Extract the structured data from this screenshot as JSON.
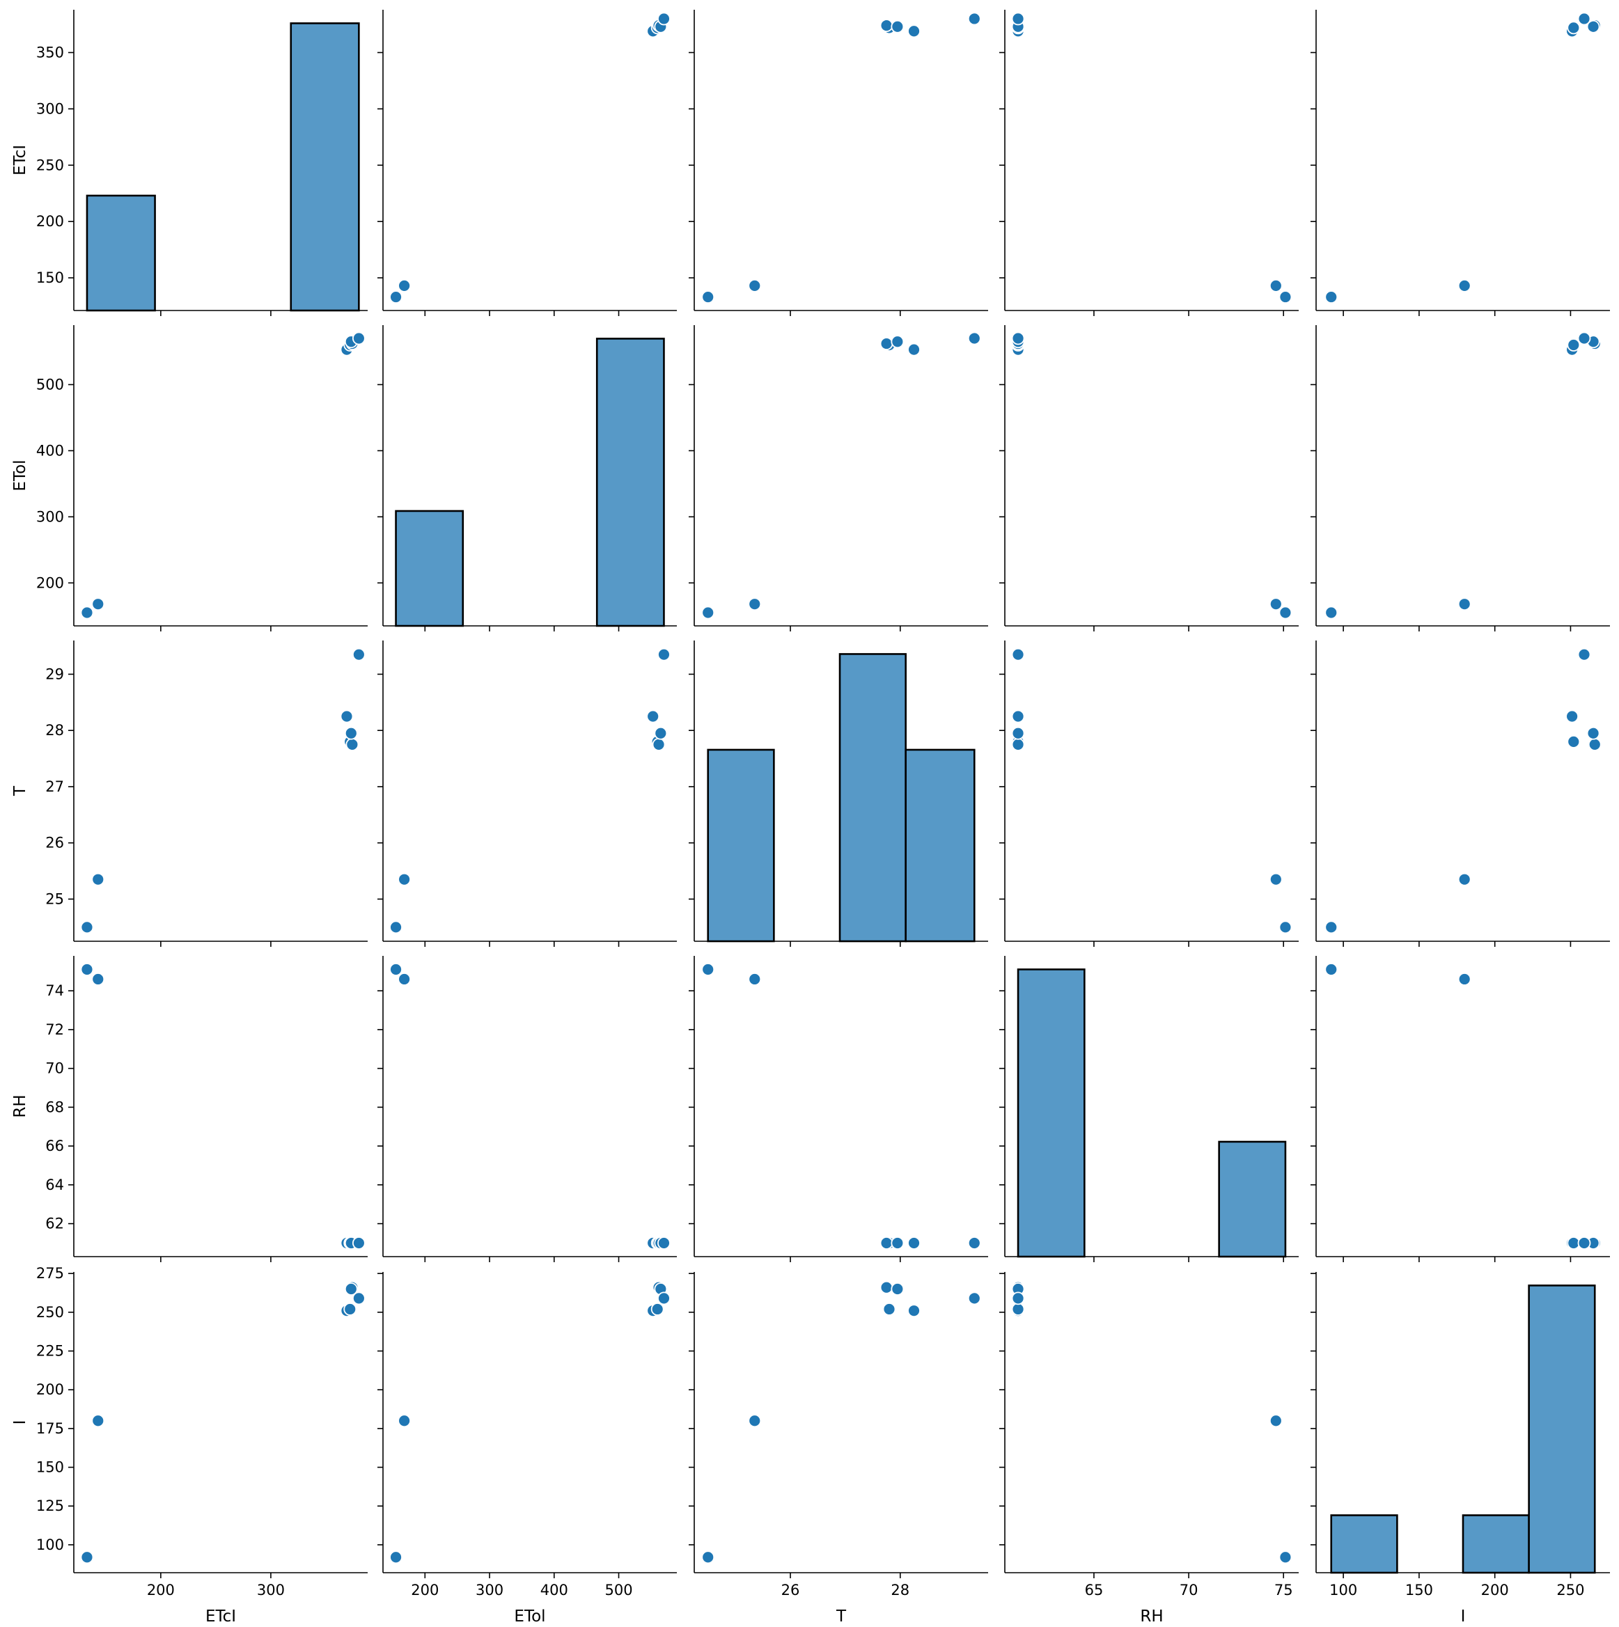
{
  "chart_data": {
    "type": "scatter",
    "layout": "pairplot",
    "variables": [
      "ETcI",
      "ETol",
      "T",
      "RH",
      "I"
    ],
    "colors": {
      "points": "#1f77b4",
      "bars": "#5799c7",
      "bar_edge": "#000000",
      "axis": "#000000"
    },
    "grid": false,
    "legend": "none",
    "observations": {
      "ETcI": [
        133,
        143,
        369,
        372,
        374,
        373,
        380
      ],
      "ETol": [
        155,
        168,
        553,
        560,
        562,
        565,
        570
      ],
      "T": [
        24.5,
        25.35,
        28.25,
        27.8,
        27.75,
        27.95,
        29.35
      ],
      "RH": [
        75.1,
        74.6,
        61.0,
        61.0,
        61.0,
        61.0,
        61.0
      ],
      "I": [
        92,
        180,
        251,
        252,
        266,
        265,
        259
      ]
    },
    "axes": [
      {
        "name": "ETcI",
        "label": "ETcI",
        "range": [
          121,
          388
        ],
        "ticks": [
          {
            "value": 150,
            "label": "150"
          },
          {
            "value": 200,
            "label": "200"
          },
          {
            "value": 250,
            "label": "250"
          },
          {
            "value": 300,
            "label": "300"
          },
          {
            "value": 350,
            "label": "350"
          }
        ],
        "x_ticks": [
          {
            "value": 200,
            "label": "200"
          },
          {
            "value": 300,
            "label": "300"
          }
        ]
      },
      {
        "name": "ETol",
        "label": "ETol",
        "range": [
          135,
          590
        ],
        "ticks": [
          {
            "value": 200,
            "label": "200"
          },
          {
            "value": 300,
            "label": "300"
          },
          {
            "value": 400,
            "label": "400"
          },
          {
            "value": 500,
            "label": "500"
          }
        ]
      },
      {
        "name": "T",
        "label": "T",
        "range": [
          24.25,
          29.6
        ],
        "ticks": [
          {
            "value": 25,
            "label": "25"
          },
          {
            "value": 26,
            "label": "26"
          },
          {
            "value": 27,
            "label": "27"
          },
          {
            "value": 28,
            "label": "28"
          },
          {
            "value": 29,
            "label": "29"
          }
        ],
        "x_ticks": [
          {
            "value": 26,
            "label": "26"
          },
          {
            "value": 28,
            "label": "28"
          }
        ]
      },
      {
        "name": "RH",
        "label": "RH",
        "range": [
          60.3,
          75.8
        ],
        "ticks": [
          {
            "value": 62,
            "label": "62"
          },
          {
            "value": 64,
            "label": "64"
          },
          {
            "value": 66,
            "label": "66"
          },
          {
            "value": 68,
            "label": "68"
          },
          {
            "value": 70,
            "label": "70"
          },
          {
            "value": 72,
            "label": "72"
          },
          {
            "value": 74,
            "label": "74"
          }
        ],
        "x_ticks": [
          {
            "value": 65,
            "label": "65"
          },
          {
            "value": 70,
            "label": "70"
          },
          {
            "value": 75,
            "label": "75"
          }
        ]
      },
      {
        "name": "I",
        "label": "I",
        "range": [
          82,
          276
        ],
        "ticks": [
          {
            "value": 100,
            "label": "100"
          },
          {
            "value": 125,
            "label": "125"
          },
          {
            "value": 150,
            "label": "150"
          },
          {
            "value": 175,
            "label": "175"
          },
          {
            "value": 200,
            "label": "200"
          },
          {
            "value": 225,
            "label": "225"
          },
          {
            "value": 250,
            "label": "250"
          },
          {
            "value": 275,
            "label": "275"
          }
        ],
        "x_ticks": [
          {
            "value": 100,
            "label": "100"
          },
          {
            "value": 150,
            "label": "150"
          },
          {
            "value": 200,
            "label": "200"
          },
          {
            "value": 250,
            "label": "250"
          }
        ]
      }
    ],
    "histograms": [
      {
        "variable": "ETcI",
        "bins": [
          [
            133,
            194.75
          ],
          [
            194.75,
            256.5
          ],
          [
            256.5,
            318.25
          ],
          [
            318.25,
            380
          ]
        ],
        "counts": [
          2,
          0,
          0,
          5
        ]
      },
      {
        "variable": "ETol",
        "bins": [
          [
            155,
            258.75
          ],
          [
            258.75,
            362.5
          ],
          [
            362.5,
            466.25
          ],
          [
            466.25,
            570
          ]
        ],
        "counts": [
          2,
          0,
          0,
          5
        ]
      },
      {
        "variable": "T",
        "bins": [
          [
            24.5,
            25.7
          ],
          [
            25.7,
            26.9
          ],
          [
            26.9,
            28.1
          ],
          [
            28.1,
            29.35
          ]
        ],
        "counts": [
          2,
          0,
          3,
          2
        ]
      },
      {
        "variable": "RH",
        "bins": [
          [
            61.0,
            64.5
          ],
          [
            64.5,
            68.05
          ],
          [
            68.05,
            71.6
          ],
          [
            71.6,
            75.1
          ]
        ],
        "counts": [
          5,
          0,
          0,
          2
        ]
      },
      {
        "variable": "I",
        "bins": [
          [
            92,
            135.5
          ],
          [
            135.5,
            179
          ],
          [
            179,
            222.5
          ],
          [
            222.5,
            266
          ]
        ],
        "counts": [
          1,
          0,
          1,
          5
        ]
      }
    ]
  }
}
